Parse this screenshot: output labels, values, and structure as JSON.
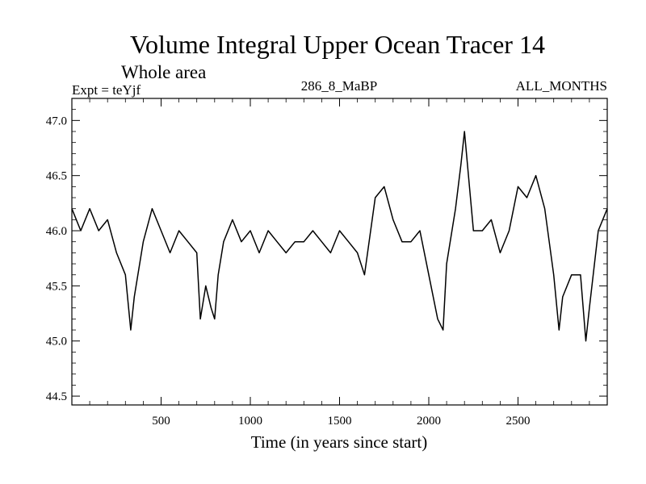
{
  "chart_data": {
    "type": "line",
    "title": "Volume Integral Upper Ocean Tracer 14",
    "subtitle": "Whole area",
    "annotations": {
      "experiment": "Expt = teYjf",
      "center": "286_8_MaBP",
      "months": "ALL_MONTHS"
    },
    "xlabel": "Time (in years since start)",
    "ylabel": "",
    "xlim": [
      0,
      3000
    ],
    "ylim": [
      44.42,
      47.2
    ],
    "xticks": [
      500,
      1000,
      1500,
      2000,
      2500
    ],
    "xtick_labels": [
      "500",
      "1000",
      "1500",
      "2000",
      "2500"
    ],
    "yticks": [
      44.5,
      45.0,
      45.5,
      46.0,
      46.5,
      47.0
    ],
    "ytick_labels": [
      "44.5",
      "45.0",
      "45.5",
      "46.0",
      "46.5",
      "47.0"
    ],
    "grid": false,
    "line_color": "#000000",
    "series": [
      {
        "name": "Upper Ocean Tracer 14",
        "x": [
          0,
          50,
          100,
          150,
          200,
          250,
          300,
          330,
          350,
          400,
          450,
          500,
          550,
          600,
          650,
          700,
          720,
          750,
          780,
          800,
          820,
          850,
          900,
          950,
          1000,
          1050,
          1100,
          1150,
          1200,
          1250,
          1300,
          1350,
          1400,
          1450,
          1500,
          1550,
          1600,
          1640,
          1700,
          1750,
          1800,
          1850,
          1900,
          1950,
          2000,
          2050,
          2080,
          2100,
          2150,
          2180,
          2200,
          2250,
          2300,
          2350,
          2400,
          2450,
          2500,
          2550,
          2600,
          2650,
          2700,
          2730,
          2750,
          2800,
          2850,
          2880,
          2900,
          2950,
          3000
        ],
        "y": [
          46.2,
          46.0,
          46.2,
          46.0,
          46.1,
          45.8,
          45.6,
          45.1,
          45.4,
          45.9,
          46.2,
          46.0,
          45.8,
          46.0,
          45.9,
          45.8,
          45.2,
          45.5,
          45.3,
          45.2,
          45.6,
          45.9,
          46.1,
          45.9,
          46.0,
          45.8,
          46.0,
          45.9,
          45.8,
          45.9,
          45.9,
          46.0,
          45.9,
          45.8,
          46.0,
          45.9,
          45.8,
          45.6,
          46.3,
          46.4,
          46.1,
          45.9,
          45.9,
          46.0,
          45.6,
          45.2,
          45.1,
          45.7,
          46.2,
          46.6,
          46.9,
          46.0,
          46.0,
          46.1,
          45.8,
          46.0,
          46.4,
          46.3,
          46.5,
          46.2,
          45.6,
          45.1,
          45.4,
          45.6,
          45.6,
          45.0,
          45.3,
          46.0,
          46.2
        ]
      }
    ]
  }
}
